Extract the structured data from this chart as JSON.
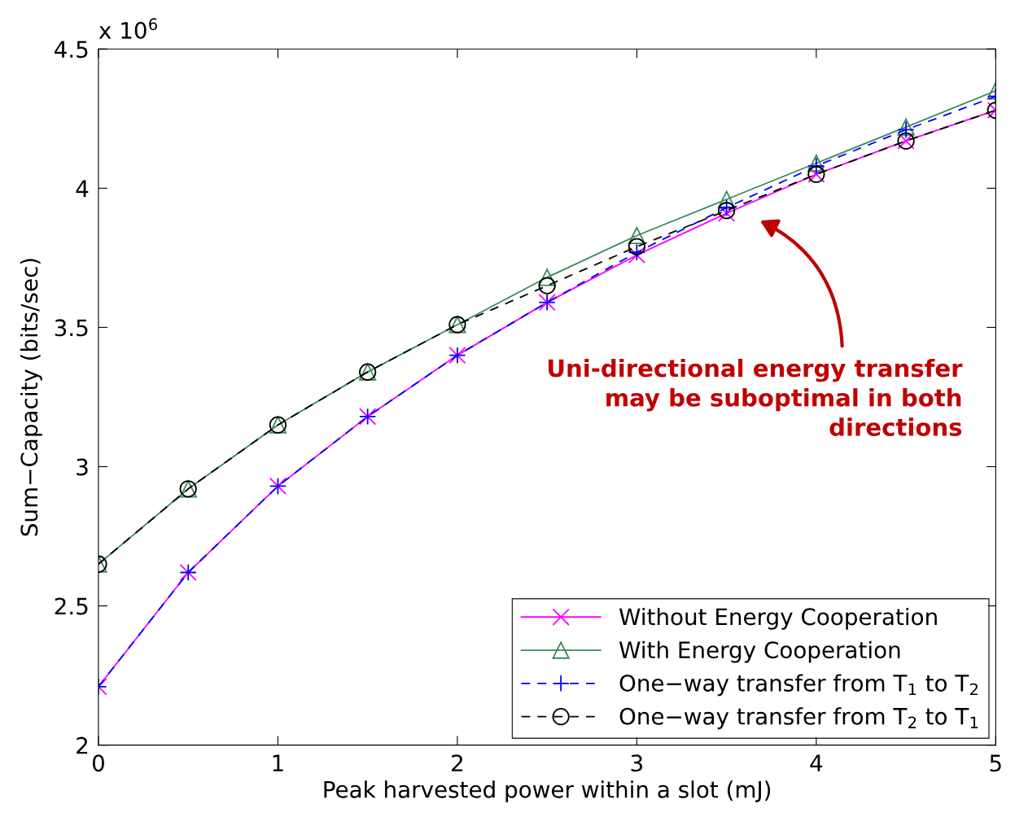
{
  "chart_data": {
    "type": "line",
    "xlabel": "Peak harvested power within a slot (mJ)",
    "ylabel": "Sum−Capacity (bits/sec)",
    "x": [
      0,
      0.5,
      1,
      1.5,
      2,
      2.5,
      3,
      3.5,
      4,
      4.5,
      5
    ],
    "series": [
      {
        "name": "Without Energy Cooperation",
        "color": "#ff00ff",
        "marker": "cross",
        "line_style": "solid",
        "values": [
          2.21,
          2.62,
          2.93,
          3.18,
          3.4,
          3.59,
          3.76,
          3.91,
          4.05,
          4.17,
          4.28
        ]
      },
      {
        "name": "With Energy Cooperation",
        "color": "#3a8a5a",
        "marker": "triangle",
        "line_style": "solid",
        "values": [
          2.65,
          2.92,
          3.15,
          3.34,
          3.51,
          3.68,
          3.83,
          3.96,
          4.09,
          4.22,
          4.35
        ]
      },
      {
        "name": "One−way transfer from T$_{1}$ to T$_{2}$",
        "color": "#0000ff",
        "marker": "plus",
        "line_style": "dashed",
        "values": [
          2.21,
          2.62,
          2.93,
          3.18,
          3.4,
          3.59,
          3.77,
          3.93,
          4.08,
          4.21,
          4.33
        ]
      },
      {
        "name": "One−way transfer from T$_{2}$ to T$_{1}$",
        "color": "#000000",
        "marker": "circle",
        "line_style": "dashed",
        "values": [
          2.65,
          2.92,
          3.15,
          3.34,
          3.51,
          3.65,
          3.79,
          3.92,
          4.05,
          4.17,
          4.28
        ]
      }
    ],
    "xlim": [
      0,
      5
    ],
    "xticks": [
      0,
      1,
      2,
      3,
      4,
      5
    ],
    "ylim": [
      2,
      4.5
    ],
    "yticks": [
      2,
      2.5,
      3,
      3.5,
      4,
      4.5
    ],
    "grid": false,
    "legend": "bottom right",
    "annotations": [
      "x 10$^{6}$",
      "Uni-directional energy transfer\nmay be suboptimal in both\ndirections"
    ]
  }
}
